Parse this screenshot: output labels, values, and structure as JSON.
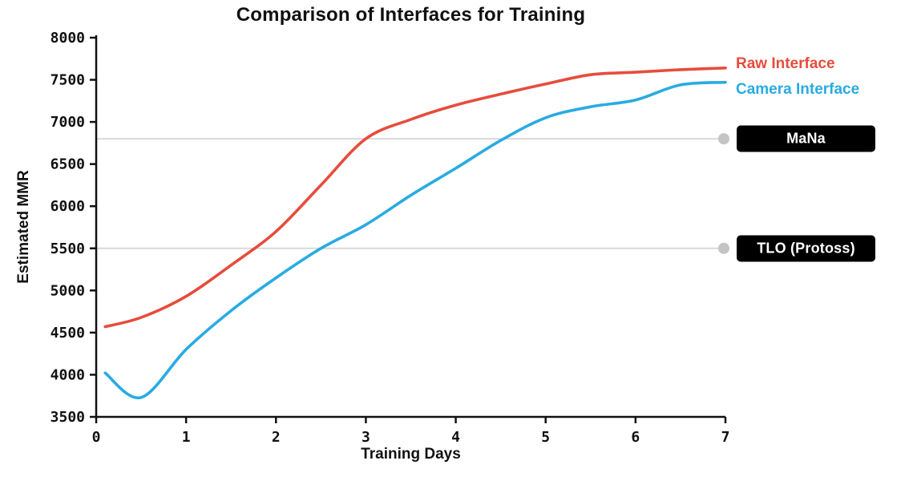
{
  "chart_data": {
    "type": "line",
    "title": "Comparison of Interfaces for Training",
    "xlabel": "Training Days",
    "ylabel": "Estimated MMR",
    "xlim": [
      0,
      7
    ],
    "ylim": [
      3500,
      8000
    ],
    "xticks": [
      0,
      1,
      2,
      3,
      4,
      5,
      6,
      7
    ],
    "yticks": [
      3500,
      4000,
      4500,
      5000,
      5500,
      6000,
      6500,
      7000,
      7500,
      8000
    ],
    "grid": false,
    "legend_position": "right-of-line-ends",
    "x": [
      0.1,
      0.5,
      1,
      1.5,
      2,
      2.5,
      3,
      3.5,
      4,
      4.5,
      5,
      5.5,
      6,
      6.5,
      7
    ],
    "series": [
      {
        "name": "Raw Interface",
        "color": "#e74c3c",
        "values": [
          4570,
          4680,
          4930,
          5300,
          5700,
          6250,
          6800,
          7030,
          7200,
          7330,
          7450,
          7560,
          7590,
          7620,
          7640
        ]
      },
      {
        "name": "Camera Interface",
        "color": "#29abe2",
        "values": [
          4020,
          3730,
          4300,
          4760,
          5150,
          5500,
          5780,
          6130,
          6450,
          6780,
          7050,
          7180,
          7260,
          7440,
          7470
        ]
      }
    ],
    "reference_lines": [
      {
        "label": "MaNa",
        "value": 6800,
        "line_color": "#d9d9d9",
        "dot_color": "#c4c4c4",
        "label_bg": "#000000",
        "label_color": "#ffffff"
      },
      {
        "label": "TLO (Protoss)",
        "value": 5500,
        "line_color": "#d9d9d9",
        "dot_color": "#c4c4c4",
        "label_bg": "#000000",
        "label_color": "#ffffff"
      }
    ],
    "axis_color": "#111111"
  }
}
